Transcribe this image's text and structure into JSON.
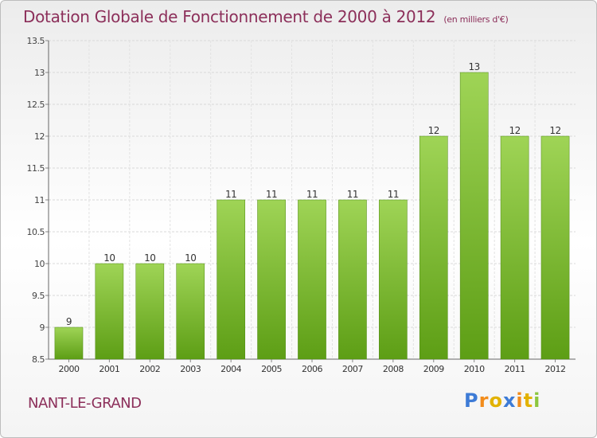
{
  "title": "Dotation Globale de Fonctionnement de 2000 à 2012",
  "unit": "(en milliers d'€)",
  "commune": "NANT-LE-GRAND",
  "logo": {
    "text": "Proxiti",
    "letters": [
      {
        "char": "P",
        "color": "#3d7bd6"
      },
      {
        "char": "r",
        "color": "#f28c1b"
      },
      {
        "char": "o",
        "color": "#e2b200"
      },
      {
        "char": "x",
        "color": "#3d7bd6"
      },
      {
        "char": "i",
        "color": "#f28c1b"
      },
      {
        "char": "t",
        "color": "#e2b200"
      },
      {
        "char": "i",
        "color": "#8cc63f"
      }
    ]
  },
  "colors": {
    "bar_top": "#9fd456",
    "bar_bottom": "#5d9e15",
    "title": "#8c2f5a"
  },
  "chart_data": {
    "type": "bar",
    "categories": [
      "2000",
      "2001",
      "2002",
      "2003",
      "2004",
      "2005",
      "2006",
      "2007",
      "2008",
      "2009",
      "2010",
      "2011",
      "2012"
    ],
    "values": [
      9,
      10,
      10,
      10,
      11,
      11,
      11,
      11,
      11,
      12,
      13,
      12,
      12
    ],
    "data_labels": [
      "9",
      "10",
      "10",
      "10",
      "11",
      "11",
      "11",
      "11",
      "11",
      "12",
      "13",
      "12",
      "12"
    ],
    "ylim": [
      8.5,
      13.5
    ],
    "yticks": [
      8.5,
      9,
      9.5,
      10,
      10.5,
      11,
      11.5,
      12,
      12.5,
      13,
      13.5
    ],
    "ytick_labels": [
      "8.5",
      "9",
      "9.5",
      "10",
      "10.5",
      "11",
      "11.5",
      "12",
      "12.5",
      "13",
      "13.5"
    ],
    "grid": true,
    "xlabel": "",
    "ylabel": ""
  }
}
